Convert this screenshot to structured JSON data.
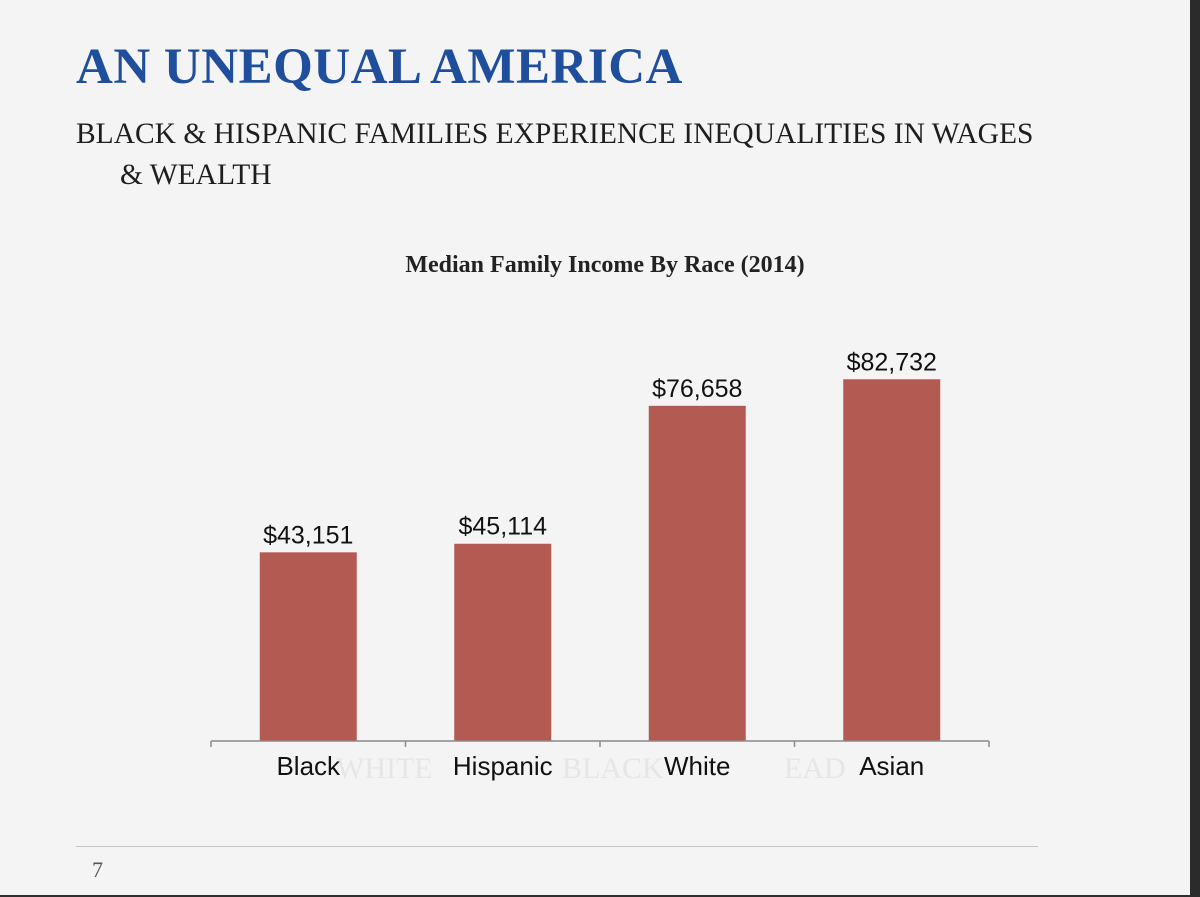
{
  "slide": {
    "title": "AN UNEQUAL AMERICA",
    "subtitle_line1": "BLACK & HISPANIC FAMILIES EXPERIENCE INEQUALITIES IN WAGES",
    "subtitle_line2": "& WEALTH",
    "page_number": "7",
    "background_ghost_words": [
      "WHITE",
      "BLACK",
      "EAD"
    ]
  },
  "colors": {
    "title": "#1f4e9c",
    "bar": "#b35a52",
    "background": "#f4f4f4"
  },
  "chart_data": {
    "type": "bar",
    "title": "Median Family Income By Race (2014)",
    "xlabel": "",
    "ylabel": "",
    "categories": [
      "Black",
      "Hispanic",
      "White",
      "Asian"
    ],
    "values": [
      43151,
      45114,
      76658,
      82732
    ],
    "value_labels": [
      "$43,151",
      "$45,114",
      "$76,658",
      "$82,732"
    ],
    "ylim": [
      0,
      94000
    ],
    "grid": false,
    "legend": "none"
  }
}
